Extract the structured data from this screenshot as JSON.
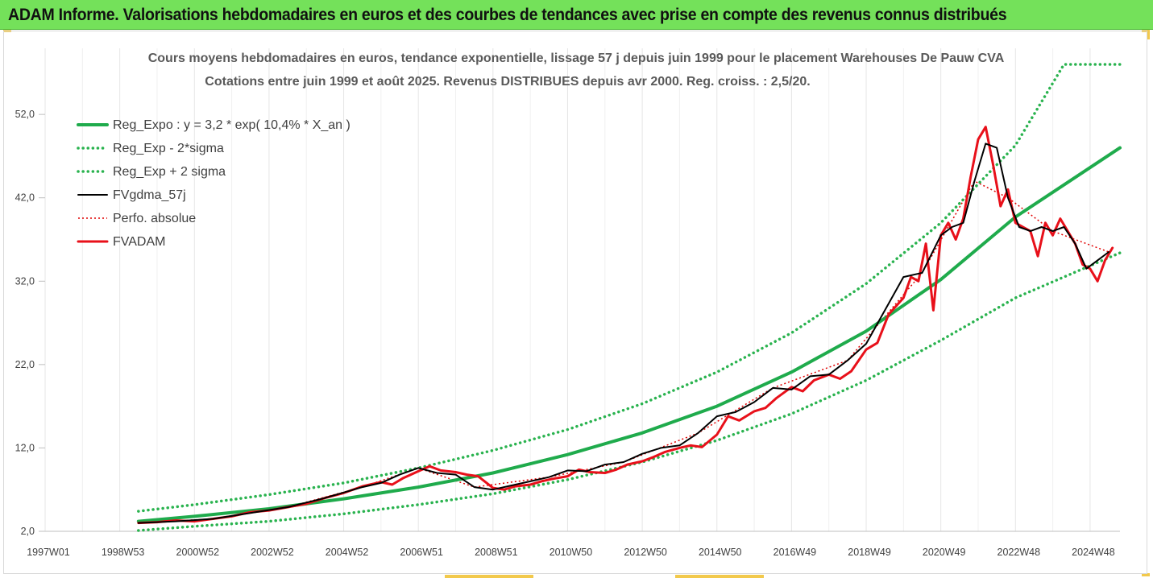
{
  "banner": {
    "title": "ADAM Informe. Valorisations hebdomadaires en euros et des courbes de tendances avec prise en compte des revenus connus distribués"
  },
  "colors": {
    "banner_bg": "#74e15a",
    "reg_expo": "#1fab4c",
    "sigma_bands": "#2ab34f",
    "fvgdma": "#000000",
    "perfo": "#e00000",
    "fvadam": "#e8101a",
    "grid": "#e6e6e6"
  },
  "chart_data": {
    "type": "line",
    "title": "Cours moyens hebdomadaires en euros, tendance exponentielle, lissage 57 j depuis juin 1999 pour le placement Warehouses De Pauw CVA",
    "subtitle": "Cotations entre juin 1999 et août 2025. Revenus DISTRIBUES depuis avr 2000. Reg. croiss. : 2,5/20.",
    "xlabel": "",
    "ylabel": "",
    "x_range": [
      1997.0,
      2025.8
    ],
    "ylim": [
      2.0,
      58.0
    ],
    "y_ticks": [
      2.0,
      12.0,
      22.0,
      32.0,
      42.0,
      52.0
    ],
    "y_tick_labels": [
      "2,0",
      "12,0",
      "22,0",
      "32,0",
      "42,0",
      "52,0"
    ],
    "x_tick_labels": [
      "1997W01",
      "1998W53",
      "2000W52",
      "2002W52",
      "2004W52",
      "2006W51",
      "2008W51",
      "2010W50",
      "2012W50",
      "2014W50",
      "2016W49",
      "2018W49",
      "2020W49",
      "2022W48",
      "2024W48"
    ],
    "x_tick_years": [
      1997.0,
      1999.0,
      2001.0,
      2003.0,
      2005.0,
      2007.0,
      2009.0,
      2011.0,
      2013.0,
      2015.0,
      2017.0,
      2019.0,
      2021.0,
      2023.0,
      2025.0
    ],
    "grid": "vertical",
    "legend_position": "top-left",
    "series": [
      {
        "name": "Reg_Expo : y = 3,2 * exp( 10,4% *  X_an )",
        "style": "solid-thick",
        "x": [
          1999.5,
          2001,
          2003,
          2005,
          2007,
          2009,
          2011,
          2013,
          2015,
          2017,
          2019,
          2021,
          2023,
          2025.8
        ],
        "values": [
          3.2,
          3.8,
          4.7,
          5.9,
          7.3,
          9.0,
          11.2,
          13.8,
          17.0,
          21.1,
          26.0,
          32.2,
          39.7,
          48.0
        ]
      },
      {
        "name": "Reg_Exp - 2*sigma",
        "style": "dotted",
        "x": [
          1999.5,
          2001,
          2003,
          2005,
          2007,
          2009,
          2011,
          2013,
          2015,
          2017,
          2019,
          2021,
          2023,
          2025.8
        ],
        "values": [
          2.1,
          2.6,
          3.2,
          4.1,
          5.2,
          6.5,
          8.2,
          10.3,
          12.9,
          16.1,
          20.1,
          24.9,
          30.0,
          35.4
        ]
      },
      {
        "name": "Reg_Exp + 2 sigma",
        "style": "dotted",
        "x": [
          1999.5,
          2001,
          2003,
          2005,
          2007,
          2009,
          2011,
          2013,
          2015,
          2017,
          2019,
          2021,
          2023,
          2024.3,
          2025.8
        ],
        "values": [
          4.4,
          5.2,
          6.4,
          7.8,
          9.6,
          11.7,
          14.2,
          17.3,
          21.1,
          25.8,
          31.7,
          39.0,
          48.3,
          58.0,
          58.0
        ]
      },
      {
        "name": "FVgdma_57j",
        "style": "solid-thin",
        "x": [
          1999.5,
          2000.5,
          2001.5,
          2002.5,
          2003.5,
          2004.5,
          2005.5,
          2006.0,
          2006.5,
          2007.0,
          2007.5,
          2008.0,
          2008.5,
          2009.0,
          2009.5,
          2010.0,
          2010.5,
          2011.0,
          2011.5,
          2012.0,
          2012.5,
          2013.0,
          2013.5,
          2014.0,
          2014.5,
          2015.0,
          2015.5,
          2016.0,
          2016.5,
          2017.0,
          2017.5,
          2018.0,
          2018.5,
          2019.0,
          2019.5,
          2020.0,
          2020.5,
          2021.0,
          2021.3,
          2021.6,
          2021.9,
          2022.2,
          2022.5,
          2022.8,
          2023.1,
          2023.4,
          2023.7,
          2024.0,
          2024.3,
          2024.6,
          2024.9,
          2025.2,
          2025.5
        ],
        "values": [
          3.0,
          3.2,
          3.5,
          4.2,
          4.9,
          6.0,
          7.3,
          7.8,
          8.8,
          9.6,
          9.0,
          8.8,
          7.3,
          7.0,
          7.5,
          8.0,
          8.5,
          9.3,
          9.2,
          10.0,
          10.3,
          11.3,
          12.0,
          12.3,
          13.8,
          15.8,
          16.3,
          17.5,
          19.2,
          19.0,
          20.6,
          20.8,
          22.5,
          24.5,
          28.5,
          32.5,
          33.0,
          37.5,
          38.5,
          39.0,
          44.0,
          48.5,
          48.0,
          42.0,
          38.5,
          38.0,
          38.5,
          38.0,
          38.5,
          36.5,
          33.5,
          34.5,
          35.5
        ]
      },
      {
        "name": "Perfo. absolue",
        "style": "dotted-thin",
        "x": [
          1999.5,
          2001.5,
          2003.5,
          2005.5,
          2007.0,
          2008.5,
          2010.5,
          2012.5,
          2014.5,
          2016.5,
          2018.5,
          2020.5,
          2021.9,
          2022.8,
          2024.0,
          2025.5
        ],
        "values": [
          3.0,
          3.5,
          4.9,
          7.3,
          9.6,
          7.3,
          8.5,
          10.3,
          13.8,
          19.2,
          22.5,
          33.0,
          44.0,
          42.0,
          38.0,
          35.5
        ]
      },
      {
        "name": "FVADAM",
        "style": "solid-thick",
        "x": [
          1999.5,
          2000.0,
          2000.5,
          2001.0,
          2001.5,
          2002.0,
          2002.5,
          2003.0,
          2003.5,
          2004.0,
          2004.5,
          2005.0,
          2005.5,
          2006.0,
          2006.3,
          2006.6,
          2007.0,
          2007.3,
          2007.6,
          2008.0,
          2008.3,
          2008.6,
          2009.0,
          2009.3,
          2009.6,
          2010.0,
          2010.3,
          2010.6,
          2011.0,
          2011.3,
          2011.6,
          2012.0,
          2012.3,
          2012.6,
          2013.0,
          2013.3,
          2013.6,
          2014.0,
          2014.3,
          2014.6,
          2015.0,
          2015.3,
          2015.6,
          2016.0,
          2016.3,
          2016.6,
          2017.0,
          2017.3,
          2017.6,
          2018.0,
          2018.3,
          2018.6,
          2019.0,
          2019.3,
          2019.6,
          2020.0,
          2020.2,
          2020.4,
          2020.6,
          2020.8,
          2021.0,
          2021.2,
          2021.4,
          2021.6,
          2021.8,
          2022.0,
          2022.2,
          2022.4,
          2022.6,
          2022.8,
          2023.0,
          2023.2,
          2023.4,
          2023.6,
          2023.8,
          2024.0,
          2024.2,
          2024.4,
          2024.6,
          2024.8,
          2025.0,
          2025.2,
          2025.4,
          2025.6
        ],
        "values": [
          3.0,
          3.1,
          3.3,
          3.2,
          3.5,
          3.8,
          4.3,
          4.5,
          4.9,
          5.3,
          6.0,
          6.6,
          7.4,
          7.9,
          7.6,
          8.4,
          9.2,
          9.8,
          9.3,
          9.1,
          8.8,
          8.6,
          7.2,
          7.0,
          7.4,
          7.6,
          8.0,
          8.3,
          8.6,
          9.4,
          9.1,
          9.0,
          9.4,
          10.0,
          10.4,
          10.9,
          11.5,
          12.0,
          12.3,
          12.1,
          13.6,
          15.8,
          15.3,
          16.4,
          16.8,
          18.0,
          19.3,
          18.8,
          20.1,
          20.8,
          20.3,
          21.2,
          23.8,
          24.6,
          28.0,
          30.0,
          32.5,
          32.0,
          36.5,
          28.5,
          37.5,
          39.0,
          37.0,
          39.5,
          44.5,
          49.0,
          50.5,
          46.0,
          41.0,
          43.0,
          39.0,
          38.5,
          38.0,
          35.0,
          39.0,
          37.5,
          39.5,
          38.0,
          36.5,
          34.0,
          33.5,
          32.0,
          34.5,
          36.0
        ]
      }
    ]
  }
}
